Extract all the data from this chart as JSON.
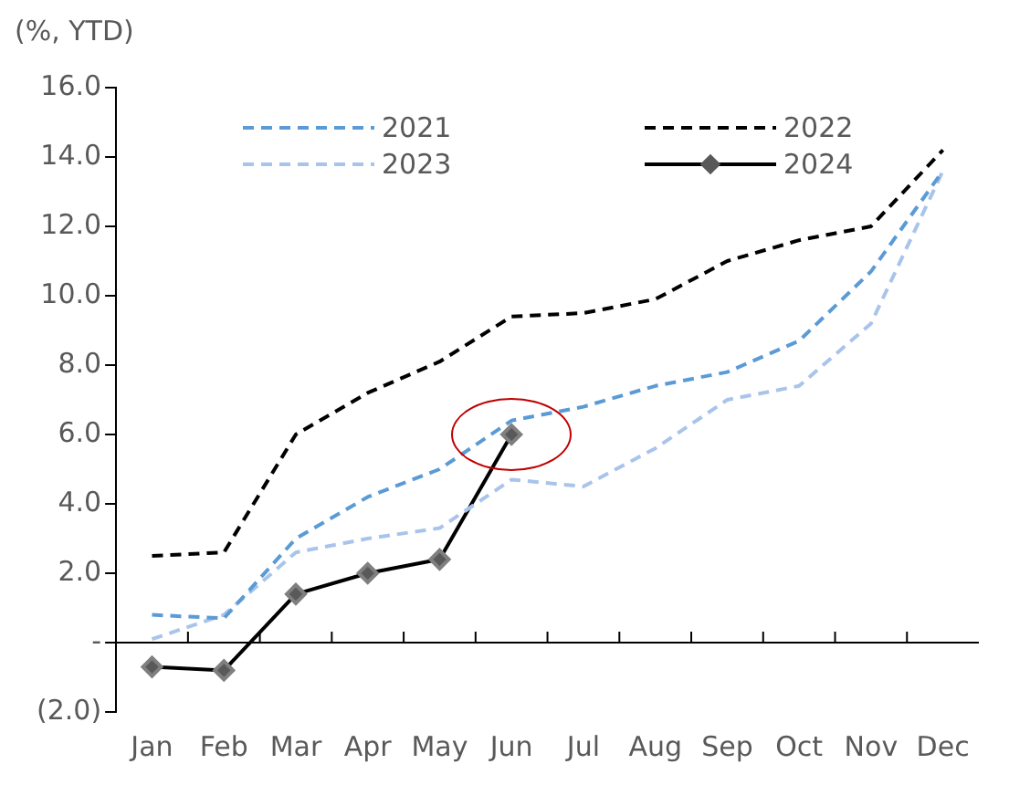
{
  "chart_data": {
    "type": "line",
    "ylabel": "(%, YTD)",
    "categories": [
      "Jan",
      "Feb",
      "Mar",
      "Apr",
      "May",
      "Jun",
      "Jul",
      "Aug",
      "Sep",
      "Oct",
      "Nov",
      "Dec"
    ],
    "series": [
      {
        "name": "2021",
        "color": "#5b9bd5",
        "line_style": "dashed",
        "marker": "none",
        "values": [
          0.8,
          0.7,
          3.0,
          4.2,
          5.0,
          6.4,
          6.8,
          7.4,
          7.8,
          8.7,
          10.7,
          13.6
        ]
      },
      {
        "name": "2022",
        "color": "#000000",
        "line_style": "dashed",
        "marker": "none",
        "values": [
          2.5,
          2.6,
          6.0,
          7.2,
          8.1,
          9.4,
          9.5,
          9.9,
          11.0,
          11.6,
          12.0,
          14.2
        ]
      },
      {
        "name": "2023",
        "color": "#a9c4eb",
        "line_style": "dashed",
        "marker": "none",
        "values": [
          0.1,
          0.8,
          2.6,
          3.0,
          3.3,
          4.7,
          4.5,
          5.6,
          7.0,
          7.4,
          9.2,
          13.6
        ]
      },
      {
        "name": "2024",
        "color": "#000000",
        "line_style": "solid",
        "marker": "diamond",
        "values": [
          -0.7,
          -0.8,
          1.4,
          2.0,
          2.4,
          6.0,
          null,
          null,
          null,
          null,
          null,
          null
        ]
      }
    ],
    "ylim": [
      -2,
      16
    ],
    "yticks": [
      {
        "value": -2,
        "label": "(2.0)"
      },
      {
        "value": 0,
        "label": "-"
      },
      {
        "value": 2,
        "label": "2.0"
      },
      {
        "value": 4,
        "label": "4.0"
      },
      {
        "value": 6,
        "label": "6.0"
      },
      {
        "value": 8,
        "label": "8.0"
      },
      {
        "value": 10,
        "label": "10.0"
      },
      {
        "value": 12,
        "label": "12.0"
      },
      {
        "value": 14,
        "label": "14.0"
      },
      {
        "value": 16,
        "label": "16.0"
      }
    ],
    "ref_lines": [
      {
        "axis": "y",
        "value": 0,
        "color": "#000000",
        "line_style": "solid"
      }
    ],
    "grid": false,
    "legend": "top"
  }
}
